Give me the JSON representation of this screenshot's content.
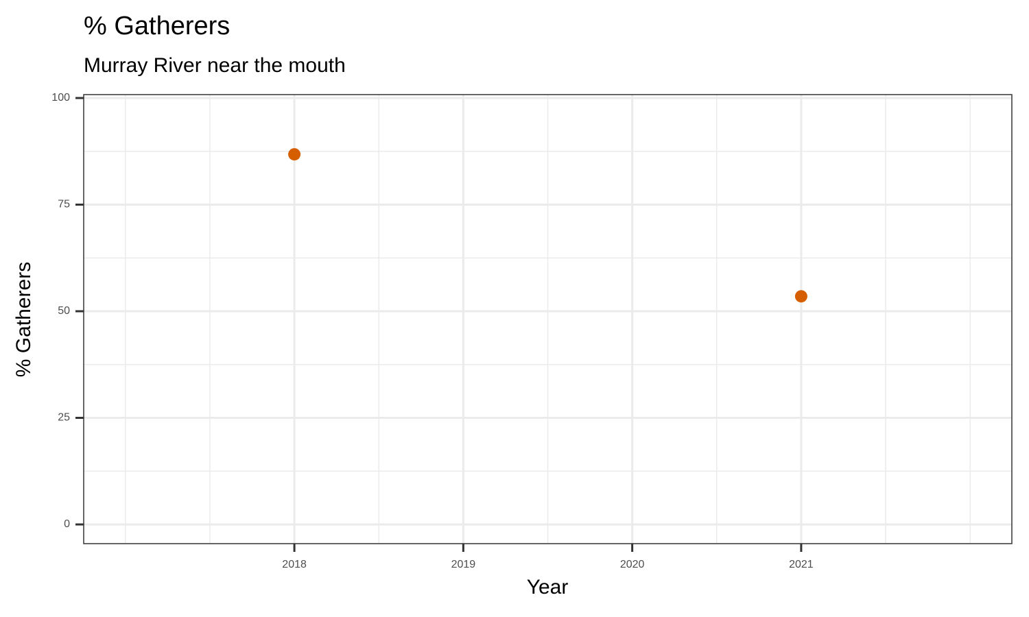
{
  "chart_data": {
    "type": "scatter",
    "title": "% Gatherers",
    "subtitle": "Murray River near the mouth",
    "x_label": "Year",
    "y_label": "% Gatherers",
    "series": [
      {
        "name": "% Gatherers",
        "color": "#D55E00",
        "x": [
          2018,
          2021
        ],
        "values": [
          86.8,
          53.5
        ]
      }
    ],
    "xlim": [
      2016.753,
      2022.247
    ],
    "xticks": [
      2018,
      2019,
      2020,
      2021
    ],
    "ylim": [
      -4.5,
      100.8
    ],
    "yticks": [
      0,
      25,
      50,
      75,
      100
    ],
    "grid": true
  }
}
